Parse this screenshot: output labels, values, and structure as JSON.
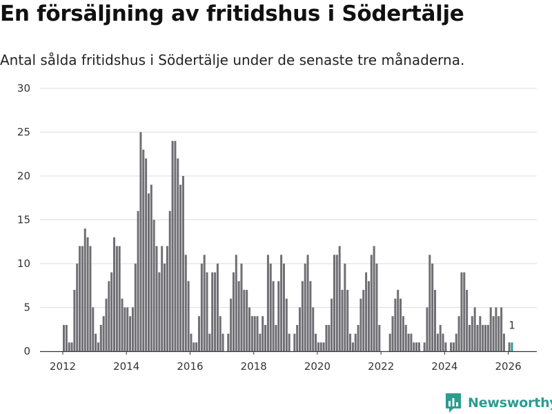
{
  "header": {
    "title": "En försäljning av fritidshus i Södertälje",
    "subtitle": "Antal sålda fritidshus i Södertälje under de senaste tre månaderna."
  },
  "brand": {
    "name": "Newsworthy",
    "color": "#2a9d8f"
  },
  "colors": {
    "bar": "#6e6e73",
    "highlight": "#2a9d8f",
    "grid": "#dddddd",
    "axis": "#333333"
  },
  "chart_data": {
    "type": "bar",
    "title": "En försäljning av fritidshus i Södertälje",
    "xlabel": "",
    "ylabel": "",
    "ylim": [
      0,
      30
    ],
    "yticks": [
      0,
      5,
      10,
      15,
      20,
      25,
      30
    ],
    "xticks": [
      "2012",
      "2014",
      "2016",
      "2018",
      "2020",
      "2022",
      "2024",
      "2026"
    ],
    "start": "2012-01",
    "grid": true,
    "highlight_last": true,
    "last_label": "1",
    "values": [
      3,
      3,
      1,
      1,
      7,
      10,
      12,
      12,
      14,
      13,
      12,
      5,
      2,
      1,
      3,
      4,
      6,
      8,
      9,
      13,
      12,
      12,
      6,
      5,
      5,
      4,
      5,
      10,
      16,
      25,
      23,
      22,
      18,
      19,
      15,
      12,
      9,
      12,
      10,
      12,
      16,
      24,
      24,
      22,
      19,
      20,
      11,
      8,
      2,
      1,
      1,
      4,
      10,
      11,
      9,
      2,
      9,
      9,
      10,
      4,
      2,
      0,
      2,
      6,
      9,
      11,
      8,
      10,
      7,
      7,
      5,
      4,
      4,
      4,
      2,
      4,
      3,
      11,
      10,
      8,
      3,
      8,
      11,
      10,
      6,
      2,
      0,
      2,
      3,
      5,
      8,
      10,
      11,
      8,
      5,
      2,
      1,
      1,
      1,
      3,
      3,
      6,
      11,
      11,
      12,
      7,
      10,
      7,
      2,
      1,
      2,
      3,
      6,
      7,
      9,
      8,
      11,
      12,
      10,
      3,
      0,
      0,
      0,
      2,
      4,
      6,
      7,
      6,
      4,
      3,
      2,
      2,
      1,
      1,
      1,
      0,
      1,
      5,
      11,
      10,
      7,
      2,
      3,
      2,
      1,
      0,
      1,
      1,
      2,
      4,
      9,
      9,
      7,
      3,
      4,
      5,
      3,
      4,
      3,
      3,
      3,
      5,
      4,
      5,
      4,
      5,
      2,
      0,
      1,
      1
    ]
  }
}
